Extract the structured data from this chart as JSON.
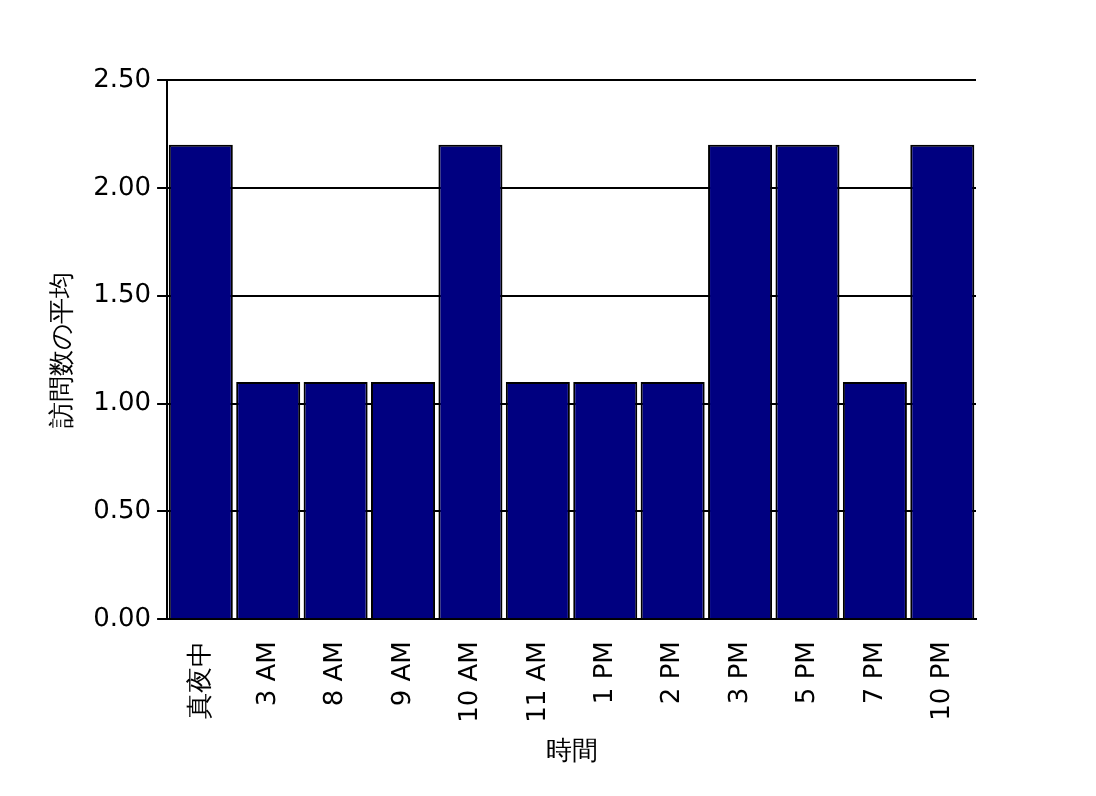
{
  "chart_data": {
    "type": "bar",
    "xlabel": "時間",
    "ylabel": "訪問数の平均",
    "categories": [
      "真夜中",
      "3 AM",
      "8 AM",
      "9 AM",
      "10 AM",
      "11 AM",
      "1 PM",
      "2 PM",
      "3 PM",
      "5 PM",
      "7 PM",
      "10 PM"
    ],
    "values": [
      2.2,
      1.1,
      1.1,
      1.1,
      2.2,
      1.1,
      1.1,
      1.1,
      2.2,
      2.2,
      1.1,
      2.2
    ],
    "color": "#000080",
    "ylim": [
      0,
      2.5
    ],
    "yticks": [
      {
        "value": 0,
        "label": "0.00"
      },
      {
        "value": 0.5,
        "label": "0.50"
      },
      {
        "value": 1,
        "label": "1.00"
      },
      {
        "value": 1.5,
        "label": "1.50"
      },
      {
        "value": 2,
        "label": "2.00"
      },
      {
        "value": 2.5,
        "label": "2.50"
      }
    ],
    "grid": "y",
    "legend": false
  }
}
